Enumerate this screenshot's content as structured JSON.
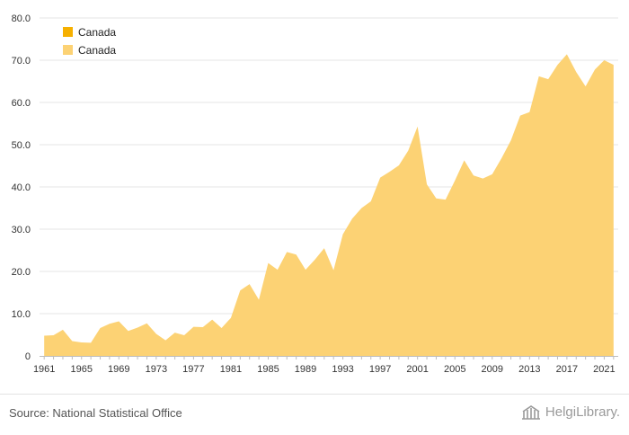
{
  "chart_data": {
    "type": "area",
    "x": [
      1961,
      1962,
      1963,
      1964,
      1965,
      1966,
      1967,
      1968,
      1969,
      1970,
      1971,
      1972,
      1973,
      1974,
      1975,
      1976,
      1977,
      1978,
      1979,
      1980,
      1981,
      1982,
      1983,
      1984,
      1985,
      1986,
      1987,
      1988,
      1989,
      1990,
      1991,
      1992,
      1993,
      1994,
      1995,
      1996,
      1997,
      1998,
      1999,
      2000,
      2001,
      2002,
      2003,
      2004,
      2005,
      2006,
      2007,
      2008,
      2009,
      2010,
      2011,
      2012,
      2013,
      2014,
      2015,
      2016,
      2017,
      2018,
      2019,
      2020,
      2021,
      2022
    ],
    "series": [
      {
        "name": "Canada",
        "color": "#fcd274",
        "values": [
          4.8,
          4.9,
          6.2,
          3.5,
          3.2,
          3.1,
          6.6,
          7.6,
          8.2,
          5.9,
          6.7,
          7.7,
          5.2,
          3.7,
          5.5,
          4.9,
          6.9,
          6.8,
          8.6,
          6.6,
          9.0,
          15.5,
          17.0,
          13.3,
          22.0,
          20.4,
          24.6,
          24.0,
          20.4,
          22.8,
          25.5,
          20.3,
          28.8,
          32.5,
          35.0,
          36.6,
          42.2,
          43.6,
          45.1,
          48.6,
          54.3,
          40.6,
          37.3,
          37.0,
          41.5,
          46.3,
          42.7,
          42.0,
          43.0,
          46.8,
          51.0,
          56.9,
          57.7,
          66.2,
          65.5,
          68.9,
          71.4,
          67.2,
          63.8,
          67.8,
          70.0,
          68.9
        ]
      }
    ],
    "legend": [
      {
        "label": "Canada",
        "color": "#f6b000"
      },
      {
        "label": "Canada",
        "color": "#fcd274"
      }
    ],
    "legend_position": "top-left",
    "ylim": [
      0,
      80
    ],
    "y_ticks": [
      "0",
      "10.0",
      "20.0",
      "30.0",
      "40.0",
      "50.0",
      "60.0",
      "70.0",
      "80.0"
    ],
    "x_ticks": [
      1961,
      1965,
      1969,
      1973,
      1977,
      1981,
      1985,
      1989,
      1993,
      1997,
      2001,
      2005,
      2009,
      2013,
      2017,
      2021
    ],
    "grid": true
  },
  "footer": {
    "source": "Source: National Statistical Office",
    "brand": "HelgiLibrary."
  }
}
